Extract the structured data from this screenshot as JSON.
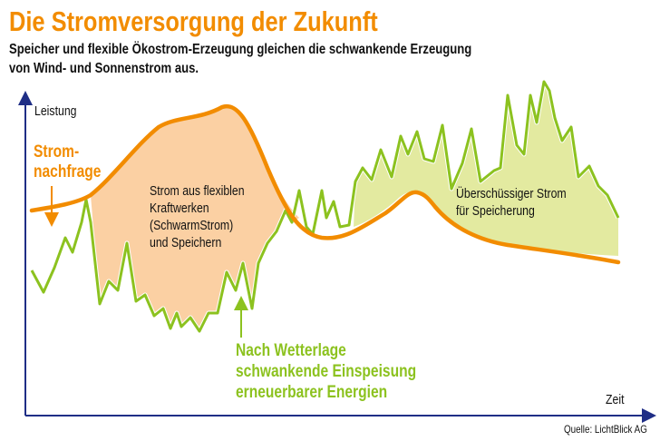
{
  "title": "Die Stromversorgung der Zukunft",
  "subtitle_lines": [
    "Speicher und flexible Ökostrom-Erzeugung gleichen die schwankende Erzeugung",
    "von Wind- und Sonnenstrom aus."
  ],
  "axes": {
    "y_label": "Leistung",
    "x_label": "Zeit",
    "color": "#1f2e86"
  },
  "demand": {
    "label_lines": [
      "Strom-",
      "nachfrage"
    ],
    "color": "#f28c00"
  },
  "renewables": {
    "label_lines": [
      "Nach Wetterlage",
      "schwankende Einspeisung",
      "erneuerbarer Energien"
    ],
    "color": "#8cc21f"
  },
  "deficit_area": {
    "label_lines": [
      "Strom aus flexiblen",
      "Kraftwerken",
      "(SchwarmStrom)",
      "und Speichern"
    ],
    "color": "#fbd0a3"
  },
  "surplus_area": {
    "label_lines": [
      "Überschüssiger Strom",
      "für Speicherung"
    ],
    "color": "#e3eaa0"
  },
  "source": "Quelle: LichtBlick AG"
}
